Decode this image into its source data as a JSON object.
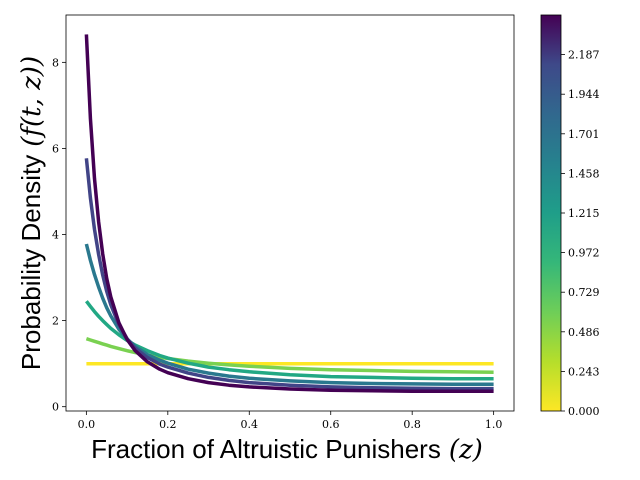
{
  "chart_data": {
    "type": "line",
    "xlabel": "Fraction of Altruistic Punishers",
    "xlabel_symbol": "(z)",
    "ylabel": "Probability Density",
    "ylabel_symbol": "(f(t, z))",
    "xlim": [
      -0.05,
      1.05
    ],
    "ylim": [
      -0.1,
      9.1
    ],
    "x_ticks": [
      "0.0",
      "0.2",
      "0.4",
      "0.6",
      "0.8",
      "1.0"
    ],
    "y_ticks": [
      "0",
      "2",
      "4",
      "6",
      "8"
    ],
    "grid": false,
    "legend": "none",
    "colormap": "viridis_r",
    "colorbar": {
      "min": 0.0,
      "max": 2.43,
      "ticks": [
        "0.000",
        "0.243",
        "0.486",
        "0.729",
        "0.972",
        "1.215",
        "1.458",
        "1.701",
        "1.944",
        "2.187"
      ]
    },
    "x": [
      0,
      0.01,
      0.02,
      0.03,
      0.04,
      0.05,
      0.06,
      0.08,
      0.1,
      0.12,
      0.15,
      0.18,
      0.2,
      0.25,
      0.3,
      0.35,
      0.4,
      0.5,
      0.6,
      0.7,
      0.8,
      0.9,
      1.0
    ],
    "series": [
      {
        "t": 0.0,
        "color": "#fde725",
        "values": [
          1.0,
          1.0,
          1.0,
          1.0,
          1.0,
          1.0,
          1.0,
          1.0,
          1.0,
          1.0,
          1.0,
          1.0,
          1.0,
          1.0,
          1.0,
          1.0,
          1.0,
          1.0,
          1.0,
          1.0,
          1.0,
          1.0,
          1.0
        ]
      },
      {
        "t": 0.4,
        "color": "#7ad151",
        "values": [
          1.58,
          1.55,
          1.52,
          1.49,
          1.46,
          1.43,
          1.4,
          1.35,
          1.3,
          1.26,
          1.2,
          1.15,
          1.12,
          1.06,
          1.01,
          0.97,
          0.94,
          0.89,
          0.86,
          0.84,
          0.82,
          0.81,
          0.8
        ]
      },
      {
        "t": 0.8,
        "color": "#22a884",
        "values": [
          2.45,
          2.33,
          2.21,
          2.1,
          2.0,
          1.91,
          1.82,
          1.67,
          1.54,
          1.43,
          1.3,
          1.19,
          1.13,
          1.01,
          0.92,
          0.86,
          0.81,
          0.74,
          0.7,
          0.68,
          0.66,
          0.65,
          0.65
        ]
      },
      {
        "t": 1.2,
        "color": "#2a788e",
        "values": [
          3.78,
          3.4,
          3.07,
          2.78,
          2.52,
          2.3,
          2.11,
          1.8,
          1.57,
          1.4,
          1.21,
          1.08,
          1.01,
          0.87,
          0.78,
          0.71,
          0.66,
          0.6,
          0.56,
          0.54,
          0.53,
          0.52,
          0.52
        ]
      },
      {
        "t": 1.6,
        "color": "#414487",
        "values": [
          5.77,
          4.85,
          4.12,
          3.54,
          3.06,
          2.68,
          2.37,
          1.9,
          1.58,
          1.36,
          1.14,
          0.99,
          0.92,
          0.78,
          0.68,
          0.61,
          0.56,
          0.5,
          0.46,
          0.44,
          0.43,
          0.42,
          0.42
        ]
      },
      {
        "t": 2.2,
        "color": "#440154",
        "values": [
          8.65,
          6.7,
          5.3,
          4.3,
          3.55,
          2.98,
          2.55,
          1.95,
          1.56,
          1.3,
          1.04,
          0.87,
          0.79,
          0.65,
          0.56,
          0.5,
          0.46,
          0.41,
          0.38,
          0.37,
          0.36,
          0.36,
          0.36
        ]
      }
    ]
  }
}
